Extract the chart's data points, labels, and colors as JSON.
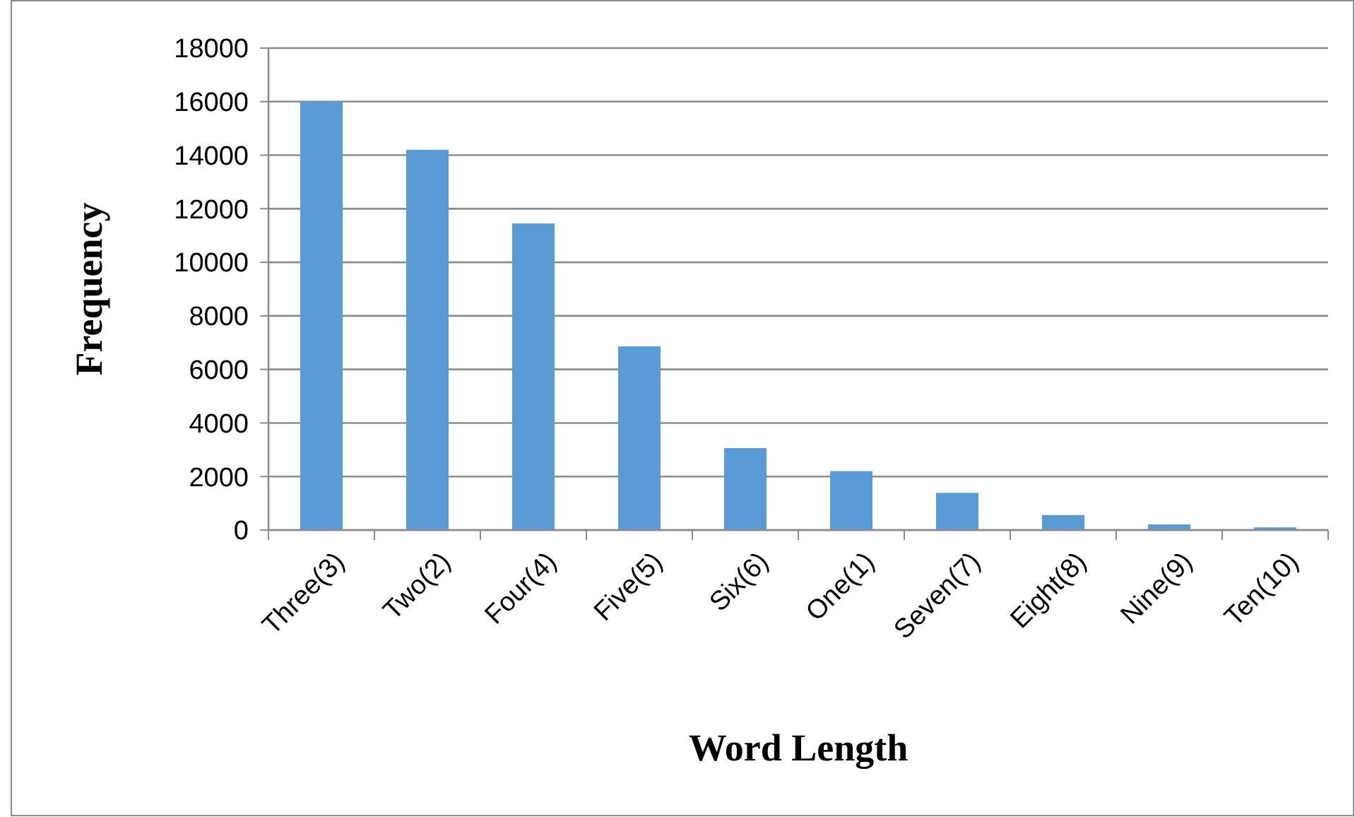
{
  "chart_data": {
    "type": "bar",
    "xlabel": "Word Length",
    "ylabel": "Frequency",
    "categories": [
      "Three(3)",
      "Two(2)",
      "Four(4)",
      "Five(5)",
      "Six(6)",
      "One(1)",
      "Seven(7)",
      "Eight(8)",
      "Nine(9)",
      "Ten(10)"
    ],
    "values": [
      16000,
      14200,
      11450,
      6860,
      3060,
      2200,
      1390,
      560,
      210,
      100
    ],
    "color": "#5b9bd5",
    "ylim": [
      0,
      18000
    ],
    "yticks": [
      0,
      2000,
      4000,
      6000,
      8000,
      10000,
      12000,
      14000,
      16000,
      18000
    ],
    "grid": "y"
  }
}
